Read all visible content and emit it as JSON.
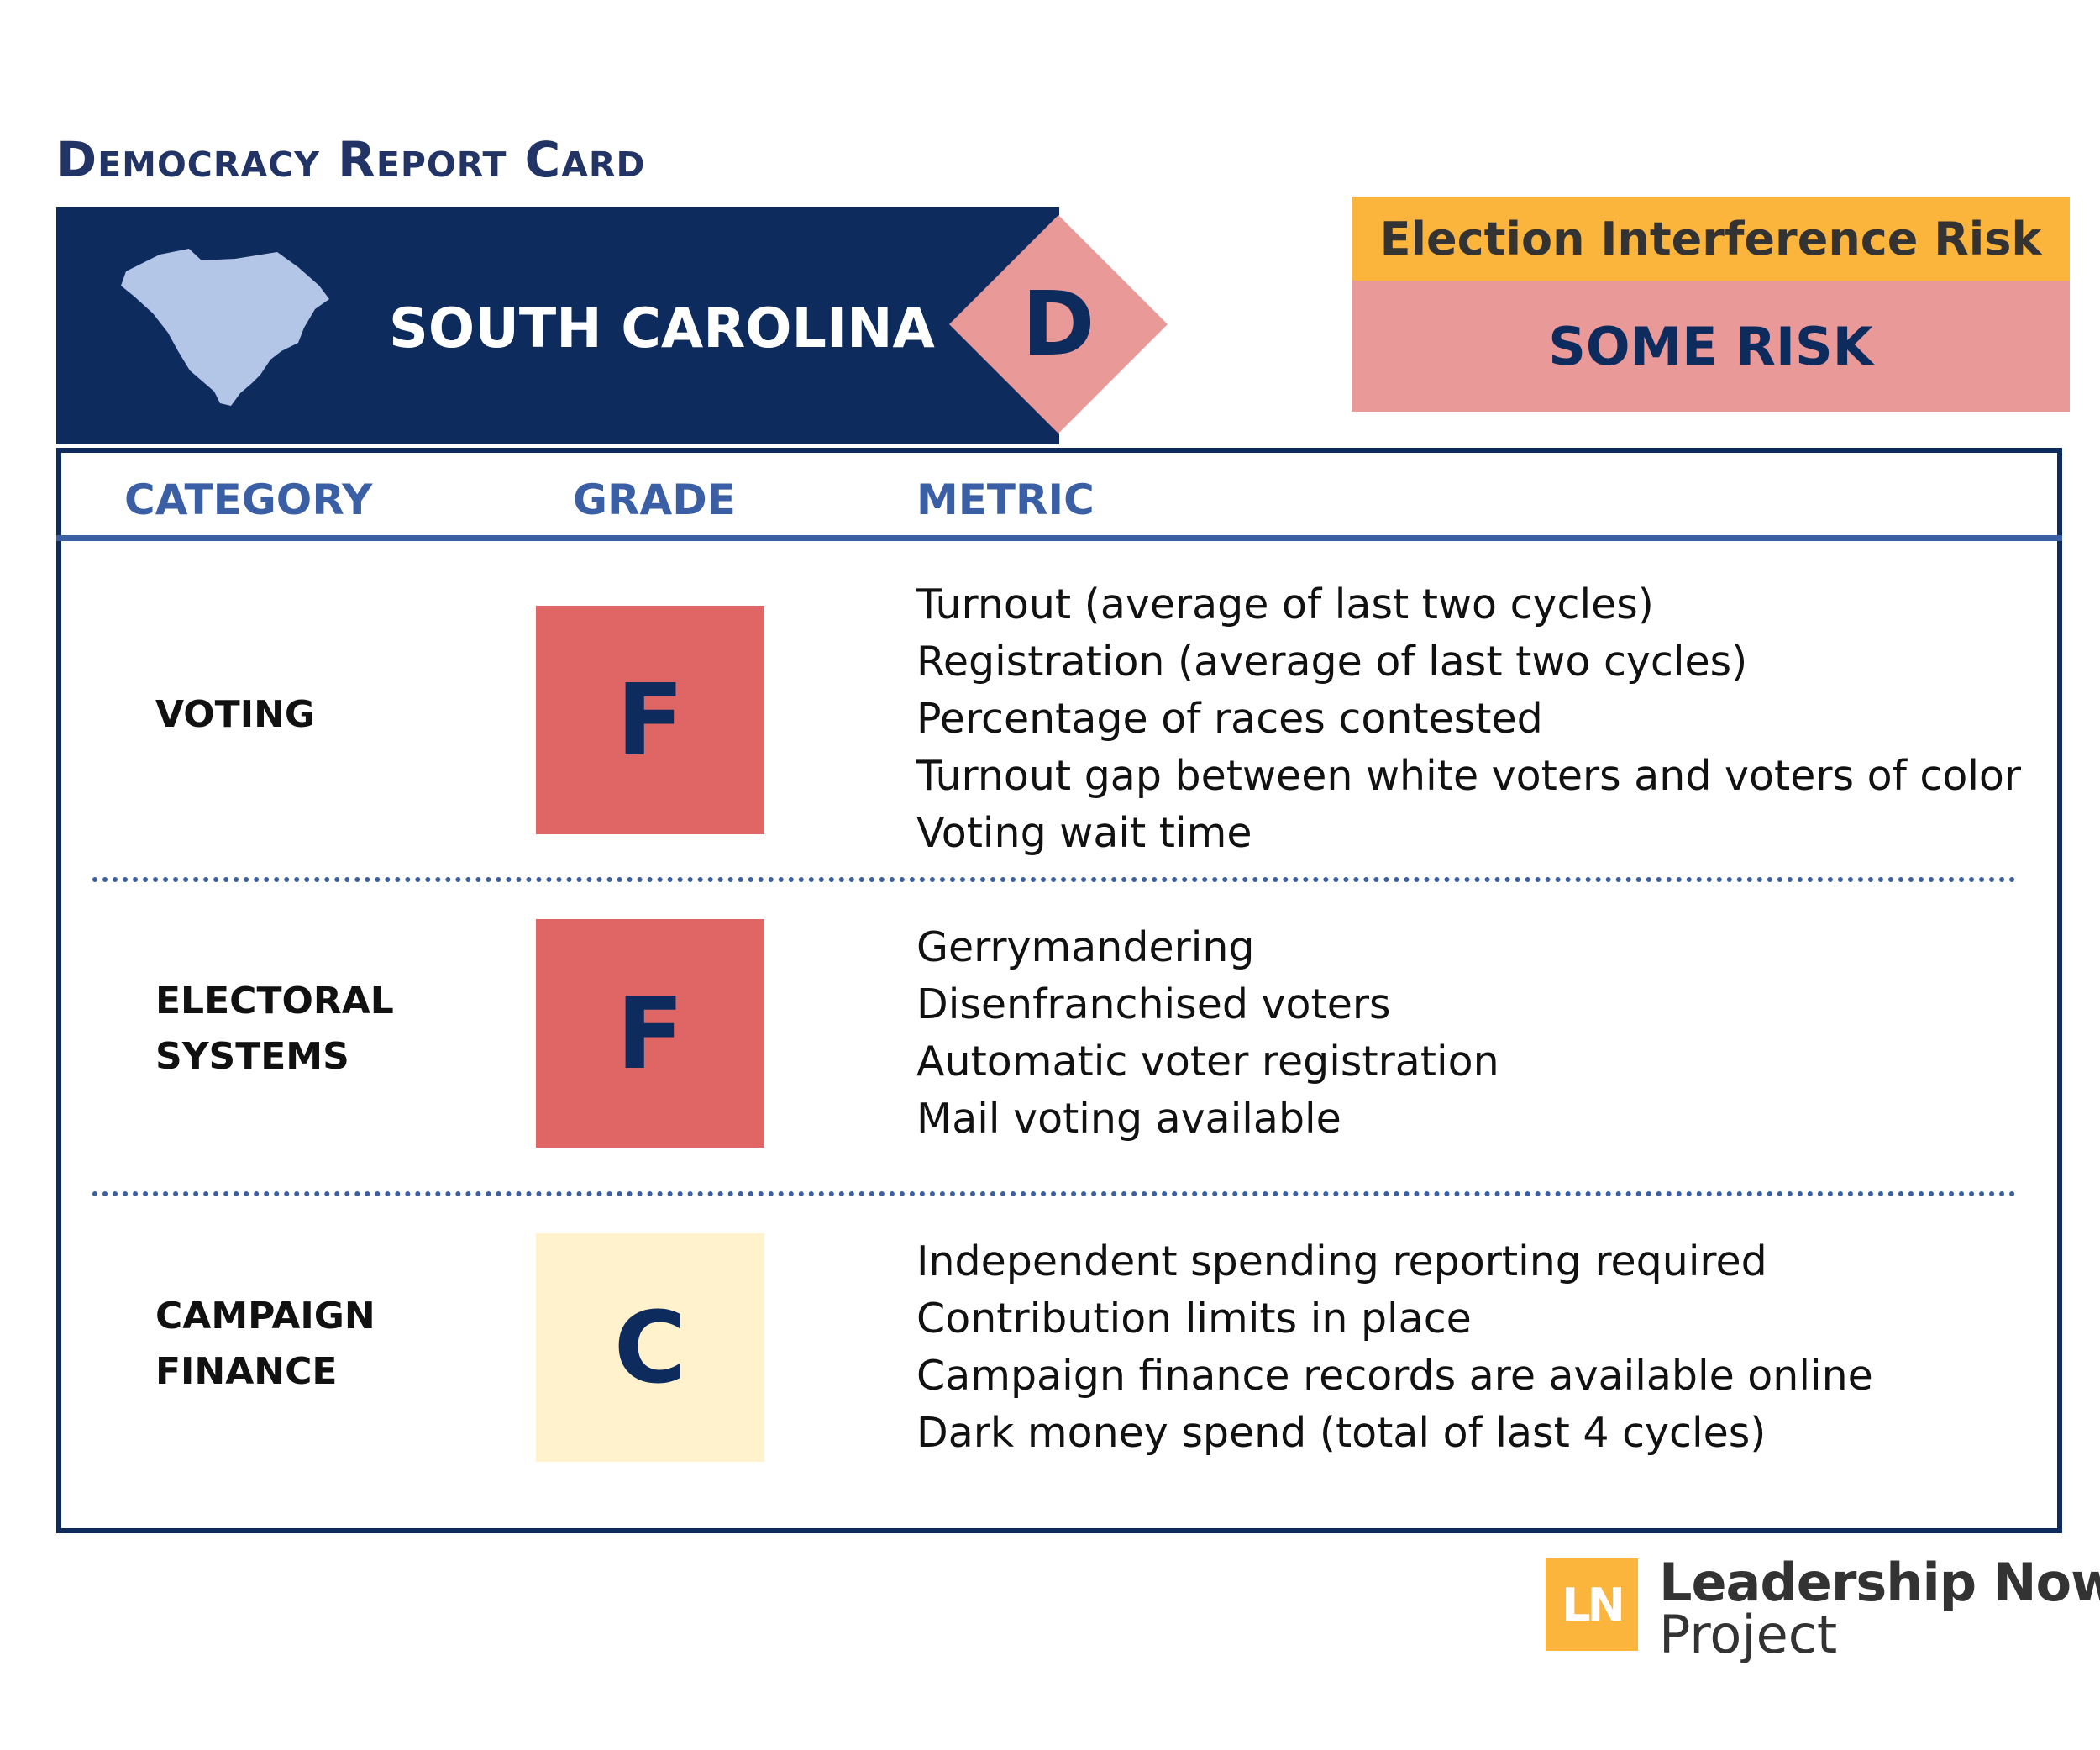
{
  "report": {
    "title": "Democracy Report Card",
    "state": "SOUTH CAROLINA",
    "overall_grade": "D"
  },
  "risk": {
    "label": "Election Interference Risk",
    "value": "SOME RISK"
  },
  "table": {
    "headers": {
      "category": "CATEGORY",
      "grade": "GRADE",
      "metric": "METRIC"
    },
    "rows": [
      {
        "category_line1": "VOTING",
        "category_line2": "",
        "grade": "F",
        "metrics": [
          "Turnout (average of last two cycles)",
          "Registration (average of last two cycles)",
          "Percentage of races contested",
          "Turnout gap between white voters and voters of color",
          "Voting wait time"
        ]
      },
      {
        "category_line1": "ELECTORAL",
        "category_line2": "SYSTEMS",
        "grade": "F",
        "metrics": [
          "Gerrymandering",
          "Disenfranchised voters",
          "Automatic voter registration",
          "Mail voting available"
        ]
      },
      {
        "category_line1": "CAMPAIGN",
        "category_line2": "FINANCE",
        "grade": "C",
        "metrics": [
          "Independent spending reporting required",
          "Contribution limits in place",
          "Campaign finance records are available online",
          "Dark money spend (total of last 4 cycles)"
        ]
      }
    ]
  },
  "logo": {
    "monogram": "LN",
    "line1": "Leadership Now",
    "line2": "Project"
  },
  "colors": {
    "navy": "#0e2b5e",
    "blue": "#3b5fa4",
    "orange": "#fbb43c",
    "pink": "#ea9999",
    "grade_f": "#e06666",
    "grade_c": "#fff2cc",
    "state_fill": "#b4c6e7"
  }
}
